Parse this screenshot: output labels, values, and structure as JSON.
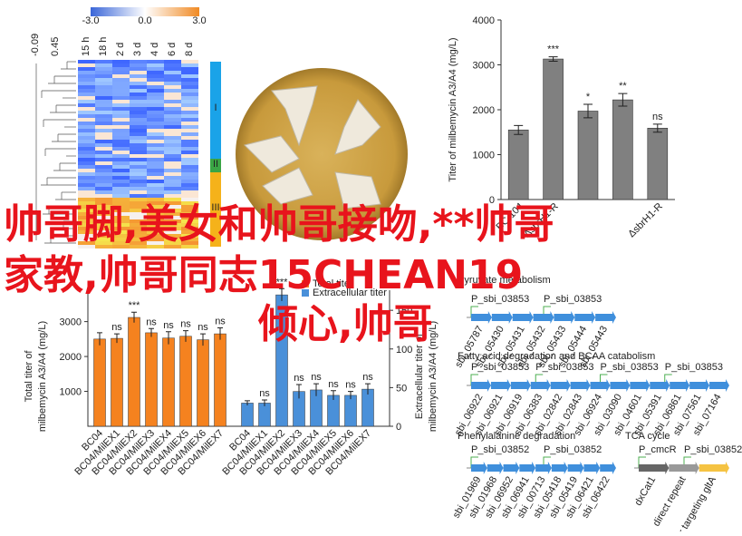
{
  "heatmap": {
    "scale_ticks": [
      {
        "value": -3,
        "label": "-3.0"
      },
      {
        "value": 0,
        "label": "0.0"
      },
      {
        "value": 3,
        "label": "3.0"
      }
    ],
    "dendro_ticks": [
      "-0.09",
      "0.45"
    ],
    "columns": [
      "15 h",
      "18 h",
      "2 d",
      "3 d",
      "4 d",
      "6 d",
      "8 d"
    ],
    "groups": [
      "I",
      "II",
      "III"
    ]
  },
  "chart_data": [
    {
      "type": "bar",
      "y_label": "Titer of milbemycin A3/A4 (mg/L)",
      "categories": [
        "BC-104",
        "ΔsbrH1-R",
        null,
        null,
        "ΔsbrH1-R"
      ],
      "values": [
        1550,
        3130,
        1970,
        2220,
        1590
      ],
      "errors": [
        100,
        50,
        150,
        140,
        90
      ],
      "annotations": [
        null,
        "***",
        "*",
        "**",
        "ns"
      ],
      "color": "#808080",
      "ylim": [
        0,
        4000
      ],
      "yticks": [
        0,
        1000,
        2000,
        3000,
        4000
      ]
    },
    {
      "type": "bar",
      "y_label": [
        "Total titer of",
        "milbemycin A3/A4 (mg/L)"
      ],
      "y2_label": [
        "Extracellular titer of",
        "milbemycin A3/A4 (mg/L)"
      ],
      "categories": [
        "BC04",
        "BC04/MilEX1",
        "BC04/MilEX2",
        "BC04/MilEX3",
        "BC04/MilEX4",
        "BC04/MilEX5",
        "BC04/MilEX6",
        "BC04/MilEX7"
      ],
      "series": [
        {
          "name": "Total titer",
          "color": "#f5821f",
          "values": [
            2500,
            2520,
            3120,
            2680,
            2530,
            2580,
            2480,
            2650
          ],
          "errors": [
            180,
            130,
            150,
            120,
            180,
            160,
            170,
            170
          ],
          "annotations": [
            null,
            "ns",
            "***",
            "ns",
            "ns",
            "ns",
            "ns",
            "ns"
          ]
        },
        {
          "name": "Extracellular titer",
          "color": "#4a90d9",
          "axis": "y2",
          "values": [
            30,
            30,
            170,
            45,
            47,
            40,
            40,
            48
          ],
          "errors": [
            3,
            4,
            8,
            9,
            8,
            6,
            5,
            7
          ],
          "annotations": [
            null,
            "ns",
            "***",
            "ns",
            "ns",
            "ns",
            "ns",
            "ns"
          ]
        }
      ],
      "ylim": [
        0,
        3900
      ],
      "yticks": [
        1000,
        2000,
        3000
      ],
      "y2lim": [
        0,
        176
      ],
      "y2ticks": [
        0,
        50,
        100,
        150
      ]
    }
  ],
  "pathways": [
    {
      "title": "Pyruvate metabolism",
      "promoters": [
        "P_sbi_03853",
        "P_sbi_03853"
      ],
      "genes": [
        "sbi_05787",
        "sbi_05430",
        "sbi_05431",
        "sbi_05432",
        "sbi_05433",
        "sbi_05444",
        "sbi_05443"
      ]
    },
    {
      "title": "Fatty acid degradation and BCAA catabolism",
      "promoters": [
        "P_sbi_03853",
        "P_sbi_03853",
        "P_sbi_03853",
        "P_sbi_03853"
      ],
      "genes": [
        "sbi_06922",
        "sbi_06921",
        "sbi_06919",
        "sbi_06383",
        "sbi_02842",
        "sbi_02843",
        "sbi_06924",
        "sbi_03090",
        "sbi_04601",
        "sbi_05391",
        "sbi_06861",
        "sbi_07561",
        "sbi_07164"
      ]
    },
    {
      "title": "Phenylalanine degradation",
      "promoters": [
        "P_sbi_03852",
        "P_sbi_03852"
      ],
      "genes": [
        "sbi_01969",
        "sbi_01968",
        "sbi_06952",
        "sbi_06941",
        "sbi_00713",
        "sbi_05418",
        "sbi_05419",
        "sbi_06421",
        "sbi_06422"
      ]
    },
    {
      "title": "TCA cycle",
      "promoters": [
        "P_cmcR",
        "P_sbi_03852"
      ],
      "genes": [
        "dxCat1",
        "direct repeat",
        "spacer targeting gltA"
      ]
    }
  ],
  "overlay": [
    "帅哥脚,美女和帅哥接吻,**帅哥",
    "家教,帅哥同志15CHEAN19",
    "倾心,帅哥"
  ]
}
